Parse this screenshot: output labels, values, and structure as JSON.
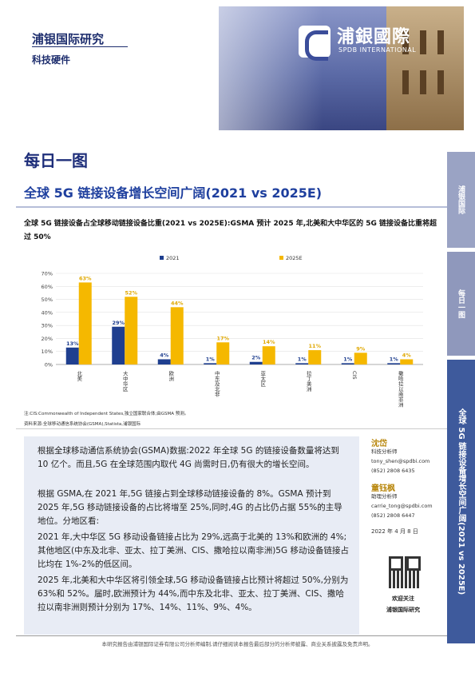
{
  "header": {
    "brand_left": "浦银国际研究",
    "section": "科技硬件",
    "logo_name": "浦銀國際",
    "logo_sub": "SPDB INTERNATIONAL"
  },
  "title_main": "每日一图",
  "title_sub": "全球 5G 链接设备占全球移动链接设备比重(2021 vs 2025E)",
  "subtitle": "全球 5G 链接设备增长空间广阔(2021 vs 2025E)",
  "caption": "全球 5G 链接设备占全球移动链接设备比重(2021 vs 2025E):GSMA 预计 2025 年,北美和大中华区的 5G 链接设备比重将超过 50%",
  "chart_data": {
    "type": "bar",
    "categories": [
      "北美",
      "大中华区",
      "欧洲",
      "中东及北非",
      "亚太区",
      "拉丁美洲",
      "CIS",
      "撒哈拉以南非洲"
    ],
    "series": [
      {
        "name": "2021",
        "values": [
          13,
          29,
          4,
          1,
          2,
          1,
          1,
          1
        ],
        "color": "#1f3f8f"
      },
      {
        "name": "2025E",
        "values": [
          63,
          52,
          44,
          17,
          14,
          11,
          9,
          4
        ],
        "color": "#f5b800"
      }
    ],
    "yticks": [
      "0%",
      "10%",
      "20%",
      "30%",
      "40%",
      "50%",
      "60%",
      "70%"
    ],
    "ylim": [
      0,
      70
    ],
    "legend": "top-center",
    "grid": true
  },
  "notes": {
    "n1": "注:CIS:Commonwealth of Independent States,独立国家联合体;由GSMA 预测。",
    "n2": "资料来源:全球移动通信系统协会(GSMA),Statista,浦银国际"
  },
  "body": {
    "p1": "根据全球移动通信系统协会(GSMA)数据:2022 年全球 5G 的链接设备数量将达到 10 亿个。而且,5G 在全球范围内取代 4G 尚需时日,仍有很大的增长空间。",
    "p2": "根据 GSMA,在 2021 年,5G 链接占到全球移动链接设备的 8%。GSMA 预计到 2025 年,5G 移动链接设备的占比将增至 25%,同时,4G 的占比仍占据 55%的主导地位。分地区看:",
    "p3": "2021 年,大中华区 5G 移动设备链接占比为 29%,远高于北美的 13%和欧洲的 4%;其他地区(中东及北非、亚太、拉丁美洲、CIS、撒哈拉以南非洲)5G 移动设备链接占比均在 1%-2%的低区间。",
    "p4": "2025 年,北美和大中华区将引领全球,5G 移动设备链接占比预计将超过 50%,分别为 63%和 52%。届时,欧洲预计为 44%,而中东及北非、亚太、拉丁美洲、CIS、撒哈拉以南非洲则预计分别为 17%、14%、11%、9%、4%。"
  },
  "analysts": [
    {
      "name": "沈岱",
      "role": "科技分析师",
      "email": "tony_shen@spdbi.com",
      "phone": "(852) 2808 6435"
    },
    {
      "name": "童钰枫",
      "role": "助理分析师",
      "email": "carrie_tong@spdbi.com",
      "phone": "(852) 2808 6447"
    }
  ],
  "date": "2022 年 4 月 8 日",
  "qr": {
    "line1": "欢迎关注",
    "line2": "浦银国际研究"
  },
  "sidebar": {
    "s1": "浦银国际",
    "s2": "每日一图",
    "s3": "全球 5G 链接设备增长空间广阔(2021 vs 2025E)"
  },
  "footer": "本研究报告由浦银国际证券有限公司分析师编制,请仔细阅读本报告最后部分的分析师披露、商业关系披露及免责声明。"
}
